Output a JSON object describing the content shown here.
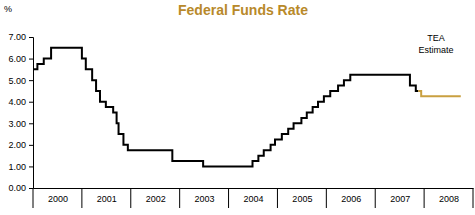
{
  "chart_data": {
    "type": "line",
    "title": "Federal Funds Rate",
    "y_label": "%",
    "xlim": [
      2000,
      2009
    ],
    "xticks": [
      {
        "value": 2000.5,
        "label": "2000"
      },
      {
        "value": 2001.5,
        "label": "2001"
      },
      {
        "value": 2002.5,
        "label": "2002"
      },
      {
        "value": 2003.5,
        "label": "2003"
      },
      {
        "value": 2004.5,
        "label": "2004"
      },
      {
        "value": 2005.5,
        "label": "2005"
      },
      {
        "value": 2006.5,
        "label": "2006"
      },
      {
        "value": 2007.5,
        "label": "2007"
      },
      {
        "value": 2008.5,
        "label": "2008"
      }
    ],
    "ylim": [
      0,
      7
    ],
    "yticks": [
      {
        "value": 0,
        "label": "0.00"
      },
      {
        "value": 1,
        "label": "1.00"
      },
      {
        "value": 2,
        "label": "2.00"
      },
      {
        "value": 3,
        "label": "3.00"
      },
      {
        "value": 4,
        "label": "4.00"
      },
      {
        "value": 5,
        "label": "5.00"
      },
      {
        "value": 6,
        "label": "6.00"
      },
      {
        "value": 7,
        "label": "7.00"
      }
    ],
    "grid": false,
    "line_style": "step",
    "series": [
      {
        "color": "#000000",
        "x": [
          2000.0,
          2000.09,
          2000.22,
          2000.37,
          2001.0,
          2001.08,
          2001.21,
          2001.29,
          2001.37,
          2001.49,
          2001.64,
          2001.71,
          2001.75,
          2001.85,
          2001.94,
          2002.85,
          2003.48,
          2004.49,
          2004.61,
          2004.72,
          2004.86,
          2004.95,
          2005.09,
          2005.22,
          2005.33,
          2005.49,
          2005.6,
          2005.72,
          2005.83,
          2005.95,
          2006.08,
          2006.24,
          2006.36,
          2006.49,
          2007.71,
          2007.83,
          2007.88
        ],
        "values": [
          5.5,
          5.75,
          6.0,
          6.5,
          6.0,
          5.5,
          5.0,
          4.5,
          4.0,
          3.75,
          3.5,
          3.0,
          2.5,
          2.0,
          1.75,
          1.25,
          1.0,
          1.25,
          1.5,
          1.75,
          2.0,
          2.25,
          2.5,
          2.75,
          3.0,
          3.25,
          3.5,
          3.75,
          4.0,
          4.25,
          4.5,
          4.75,
          5.0,
          5.25,
          4.75,
          4.5,
          4.5
        ]
      },
      {
        "name": "TEA Estimate",
        "color": "#c9a040",
        "x": [
          2007.88,
          2007.94,
          2008.75
        ],
        "values": [
          4.5,
          4.25,
          4.25
        ]
      }
    ]
  }
}
